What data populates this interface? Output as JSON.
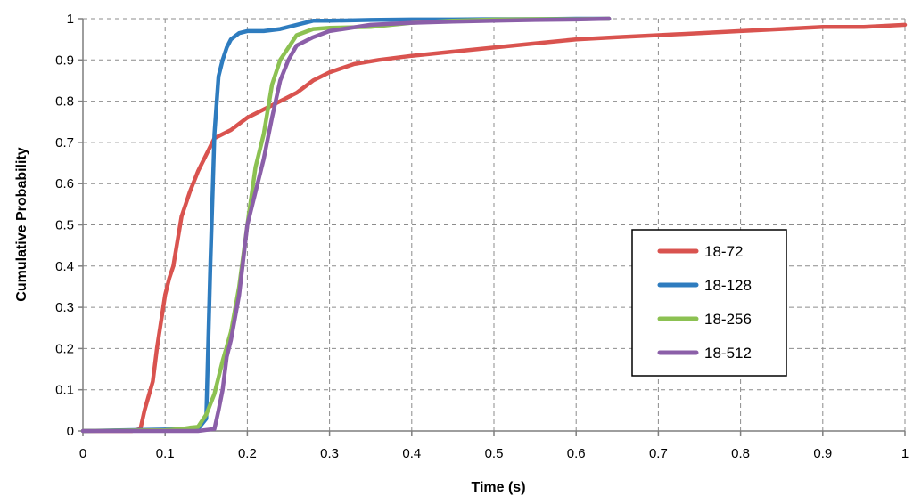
{
  "chart_data": {
    "type": "line",
    "title": "",
    "xlabel": "Time (s)",
    "ylabel": "Cumulative Probability",
    "xlim": [
      0,
      1
    ],
    "ylim": [
      0,
      1
    ],
    "grid": true,
    "legend_position": "right",
    "x_ticks": [
      "0",
      "0.1",
      "0.2",
      "0.3",
      "0.4",
      "0.5",
      "0.6",
      "0.7",
      "0.8",
      "0.9",
      "1"
    ],
    "y_ticks": [
      "0",
      "0.1",
      "0.2",
      "0.3",
      "0.4",
      "0.5",
      "0.6",
      "0.7",
      "0.8",
      "0.9",
      "1"
    ],
    "series": [
      {
        "name": "18-72",
        "color": "#d9534f",
        "x": [
          0,
          0.06,
          0.07,
          0.075,
          0.085,
          0.09,
          0.1,
          0.105,
          0.11,
          0.12,
          0.125,
          0.13,
          0.14,
          0.15,
          0.16,
          0.17,
          0.18,
          0.2,
          0.22,
          0.24,
          0.26,
          0.28,
          0.3,
          0.33,
          0.36,
          0.4,
          0.45,
          0.5,
          0.55,
          0.6,
          0.65,
          0.7,
          0.75,
          0.8,
          0.85,
          0.9,
          0.95,
          1.0
        ],
        "values": [
          0,
          0,
          0.005,
          0.05,
          0.12,
          0.2,
          0.33,
          0.37,
          0.4,
          0.52,
          0.55,
          0.58,
          0.63,
          0.67,
          0.71,
          0.72,
          0.73,
          0.76,
          0.78,
          0.8,
          0.82,
          0.85,
          0.87,
          0.89,
          0.9,
          0.91,
          0.92,
          0.93,
          0.94,
          0.95,
          0.955,
          0.96,
          0.965,
          0.97,
          0.975,
          0.98,
          0.98,
          0.985
        ]
      },
      {
        "name": "18-128",
        "color": "#2e7cbf",
        "x": [
          0,
          0.14,
          0.15,
          0.155,
          0.16,
          0.165,
          0.17,
          0.175,
          0.18,
          0.19,
          0.2,
          0.22,
          0.24,
          0.26,
          0.28,
          0.3,
          0.35,
          0.4,
          0.45,
          0.5,
          0.55,
          0.6,
          0.64
        ],
        "values": [
          0,
          0.005,
          0.03,
          0.4,
          0.72,
          0.86,
          0.9,
          0.93,
          0.95,
          0.965,
          0.97,
          0.97,
          0.975,
          0.985,
          0.995,
          0.995,
          0.997,
          0.998,
          0.998,
          0.999,
          0.999,
          1.0,
          1.0
        ]
      },
      {
        "name": "18-256",
        "color": "#8cc152",
        "x": [
          0,
          0.1,
          0.12,
          0.13,
          0.14,
          0.15,
          0.16,
          0.17,
          0.18,
          0.19,
          0.2,
          0.21,
          0.22,
          0.23,
          0.24,
          0.25,
          0.26,
          0.28,
          0.3,
          0.35,
          0.4,
          0.45,
          0.5,
          0.55,
          0.6,
          0.64
        ],
        "values": [
          0,
          0.002,
          0.005,
          0.008,
          0.01,
          0.04,
          0.09,
          0.17,
          0.24,
          0.35,
          0.5,
          0.64,
          0.72,
          0.84,
          0.9,
          0.93,
          0.96,
          0.975,
          0.978,
          0.98,
          0.99,
          0.995,
          0.998,
          0.999,
          0.999,
          1.0
        ]
      },
      {
        "name": "18-512",
        "color": "#8b5fa8",
        "x": [
          0,
          0.14,
          0.16,
          0.165,
          0.17,
          0.175,
          0.18,
          0.19,
          0.2,
          0.21,
          0.22,
          0.23,
          0.24,
          0.25,
          0.26,
          0.28,
          0.3,
          0.35,
          0.4,
          0.45,
          0.5,
          0.55,
          0.6,
          0.64
        ],
        "values": [
          0,
          0.0,
          0.005,
          0.05,
          0.1,
          0.18,
          0.22,
          0.33,
          0.5,
          0.58,
          0.66,
          0.76,
          0.85,
          0.9,
          0.935,
          0.955,
          0.97,
          0.985,
          0.99,
          0.993,
          0.995,
          0.997,
          0.998,
          1.0
        ]
      }
    ]
  }
}
